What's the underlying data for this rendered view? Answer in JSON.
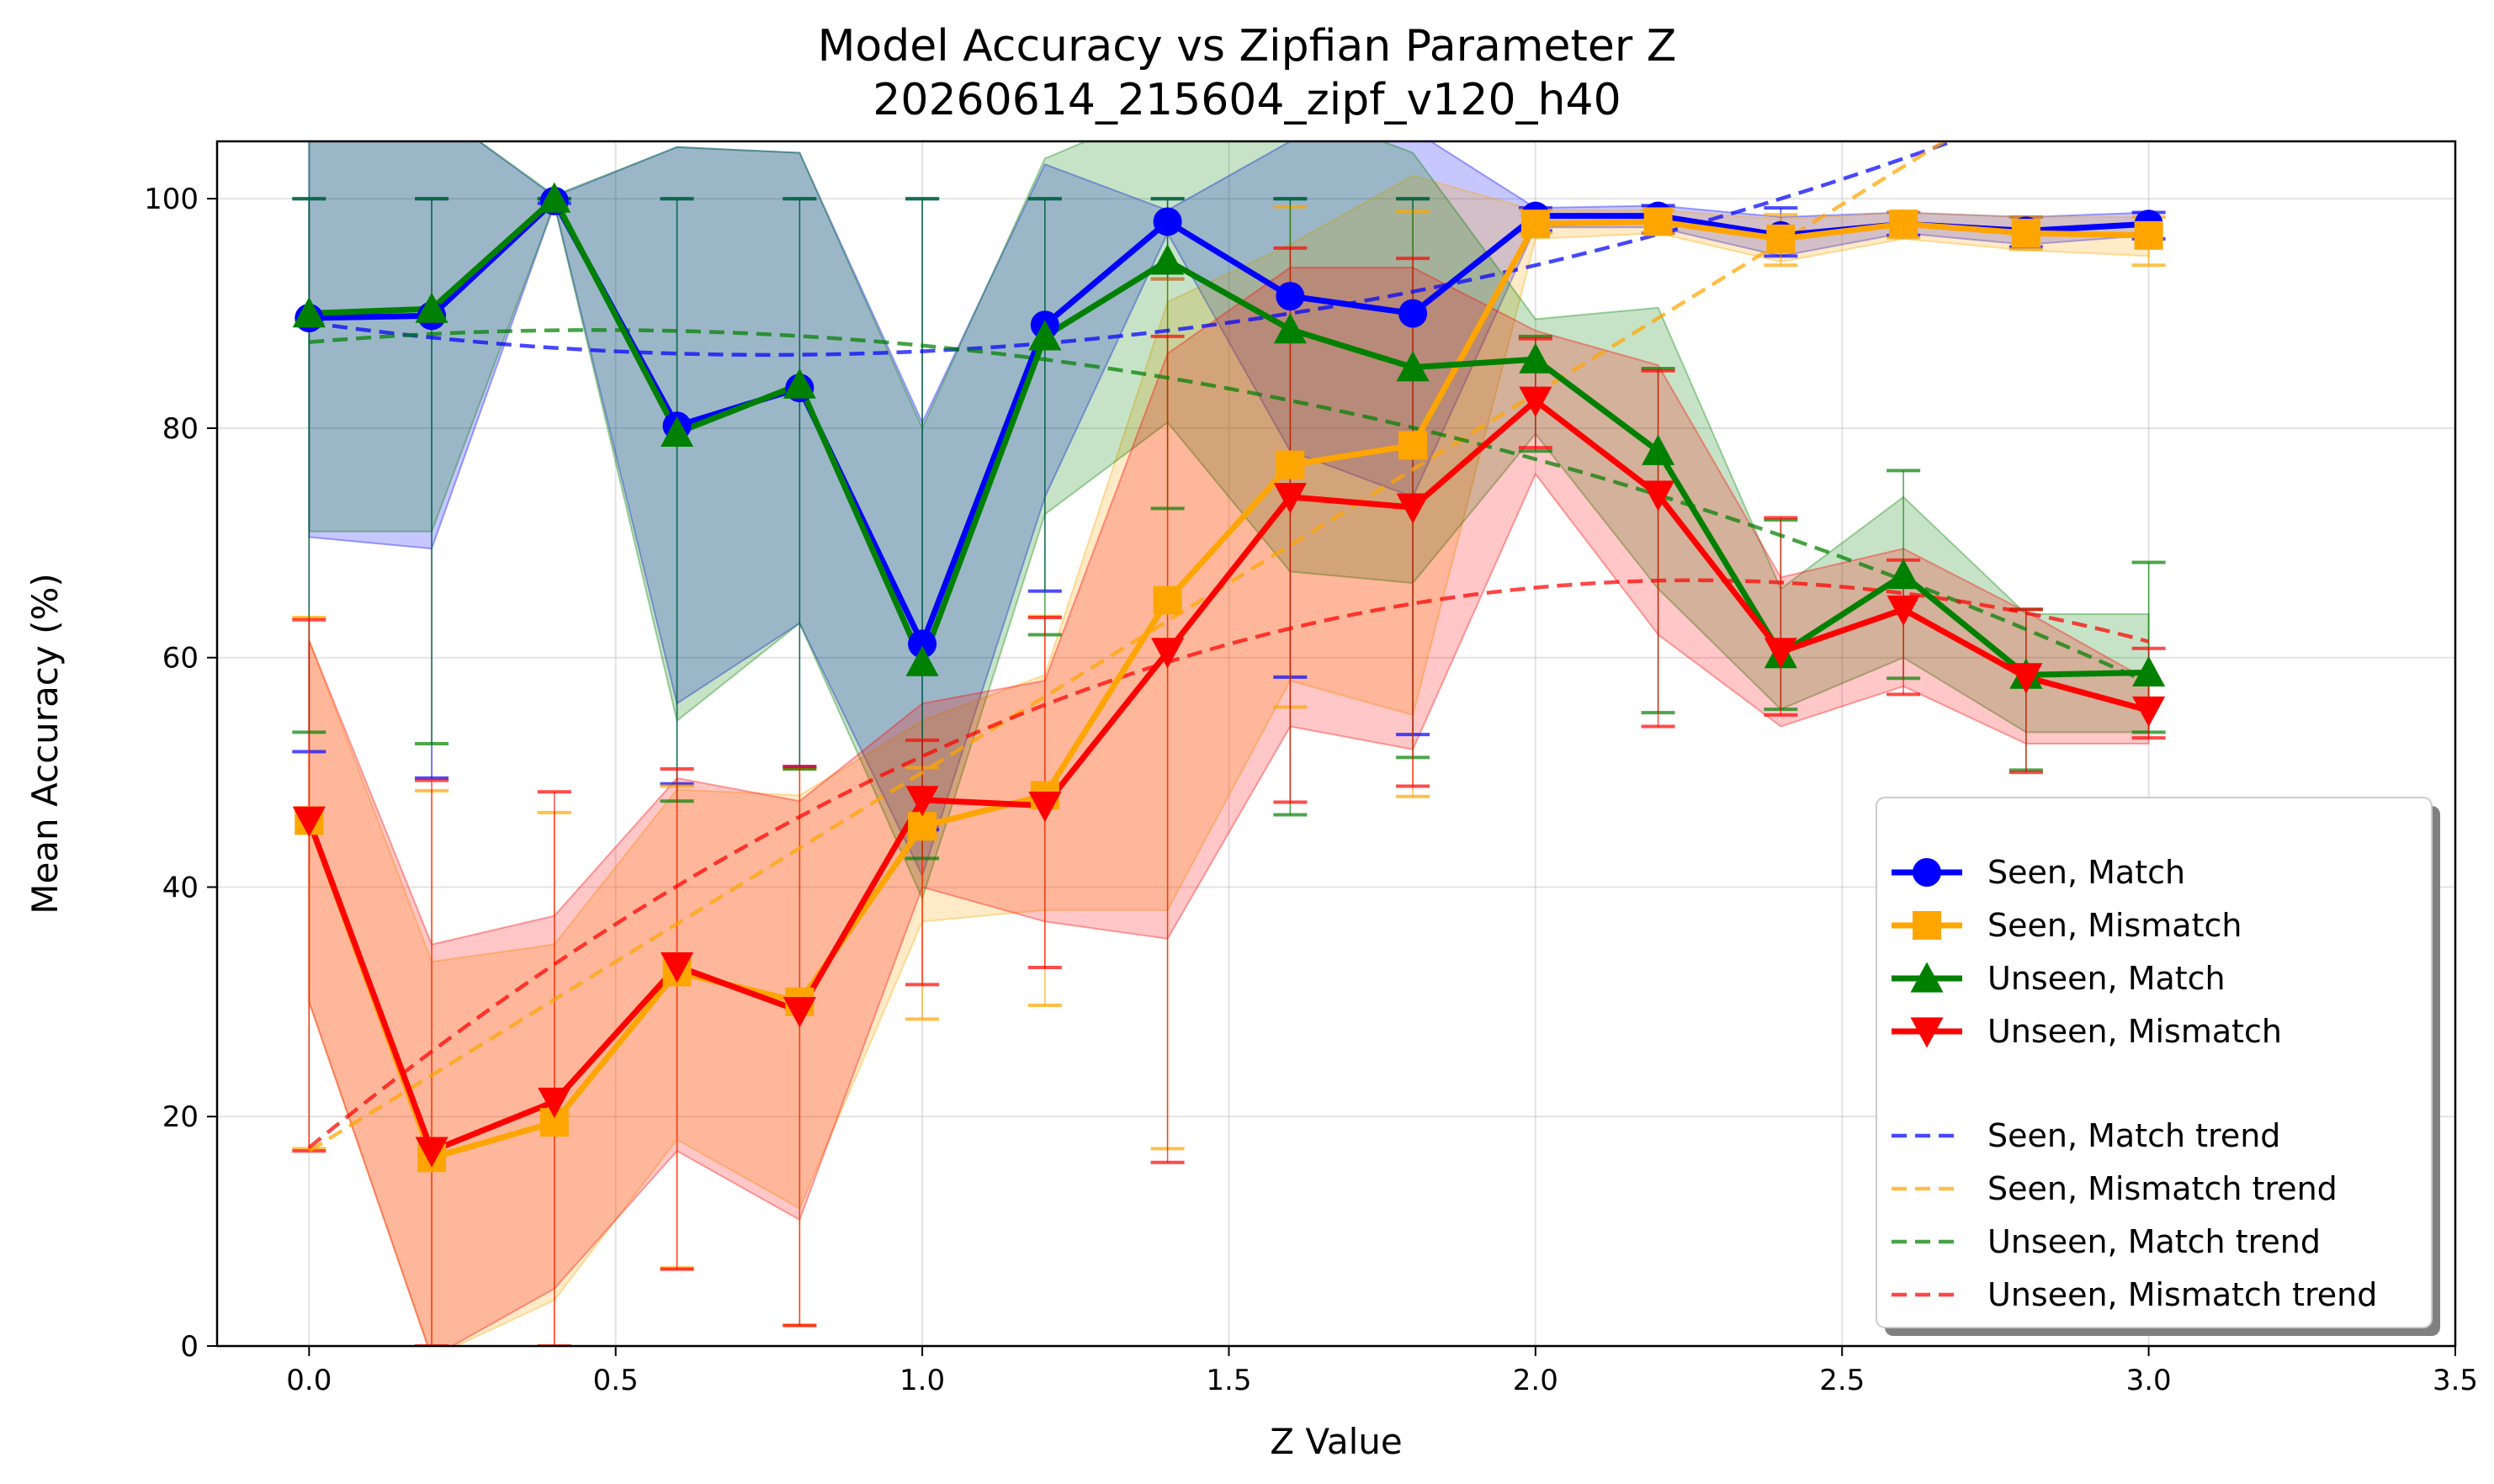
{
  "chart_data": {
    "type": "line",
    "title": "Model Accuracy vs Zipfian Parameter Z",
    "subtitle": "20260614_215604_zipf_v120_h40",
    "xlabel": "Z Value",
    "ylabel": "Mean Accuracy (%)",
    "xlim": [
      -0.15,
      3.5
    ],
    "ylim": [
      0,
      105
    ],
    "xticks": [
      0.0,
      0.5,
      1.0,
      1.5,
      2.0,
      2.5,
      3.0,
      3.5
    ],
    "xtick_labels": [
      "0.0",
      "0.5",
      "1.0",
      "1.5",
      "2.0",
      "2.5",
      "3.0",
      "3.5"
    ],
    "yticks": [
      0,
      20,
      40,
      60,
      80,
      100
    ],
    "ytick_labels": [
      "0",
      "20",
      "40",
      "60",
      "80",
      "100"
    ],
    "grid": true,
    "legend_position": "lower-right",
    "x": [
      0.0,
      0.2,
      0.4,
      0.6,
      0.8,
      1.0,
      1.2,
      1.4,
      1.6,
      1.8,
      2.0,
      2.2,
      2.4,
      2.6,
      2.8,
      3.0
    ],
    "series": [
      {
        "name": "Seen, Match",
        "color": "#0000ff",
        "marker": "circle",
        "values": [
          89.6,
          89.8,
          99.8,
          80.2,
          83.5,
          61.2,
          89.0,
          98.0,
          91.5,
          90.0,
          98.5,
          98.5,
          96.8,
          97.8,
          97.2,
          97.8
        ],
        "band_low": [
          70.5,
          69.5,
          99.5,
          56.0,
          63.0,
          41.0,
          74.0,
          97.0,
          78.0,
          74.0,
          97.5,
          97.5,
          95.0,
          97.0,
          96.0,
          96.8
        ],
        "band_high": [
          108.0,
          108.0,
          100.2,
          104.5,
          104.0,
          80.5,
          103.0,
          99.0,
          105.0,
          106.0,
          99.2,
          99.4,
          98.4,
          98.8,
          98.4,
          98.8
        ],
        "err_low": [
          51.8,
          49.5,
          99.6,
          49.0,
          50.5,
          45.0,
          65.8,
          93.0,
          58.3,
          53.3,
          97.2,
          97.0,
          95.0,
          96.8,
          95.8,
          96.5
        ],
        "err_high": [
          100.0,
          100.0,
          100.0,
          100.0,
          100.0,
          100.0,
          100.0,
          100.0,
          100.0,
          100.0,
          99.2,
          99.4,
          99.2,
          98.8,
          98.4,
          98.8
        ]
      },
      {
        "name": "Seen, Mismatch",
        "color": "#ffa500",
        "marker": "square",
        "values": [
          45.8,
          16.4,
          19.5,
          32.6,
          30.0,
          45.3,
          48.0,
          65.0,
          76.8,
          78.5,
          97.8,
          98.0,
          96.5,
          97.8,
          97.0,
          96.8
        ],
        "band_low": [
          30.0,
          -1.0,
          4.0,
          18.0,
          12.0,
          37.0,
          38.0,
          38.0,
          58.0,
          55.0,
          96.5,
          97.0,
          94.5,
          96.5,
          95.5,
          95.0
        ],
        "band_high": [
          61.5,
          33.5,
          35.0,
          48.5,
          48.0,
          54.5,
          58.5,
          91.0,
          96.0,
          102.0,
          99.0,
          99.0,
          98.2,
          98.8,
          98.4,
          98.4
        ],
        "err_low": [
          17.2,
          0.0,
          0.0,
          6.8,
          1.8,
          28.5,
          29.7,
          17.2,
          55.7,
          47.9,
          97.0,
          97.0,
          94.2,
          96.6,
          95.6,
          94.2
        ],
        "err_high": [
          63.5,
          48.4,
          46.5,
          48.8,
          50.3,
          50.4,
          63.6,
          93.0,
          99.3,
          98.9,
          99.0,
          99.0,
          98.6,
          98.8,
          98.4,
          98.4
        ]
      },
      {
        "name": "Unseen, Match",
        "color": "#008000",
        "marker": "triangle-up",
        "values": [
          90.0,
          90.4,
          100.0,
          79.6,
          83.8,
          59.6,
          88.0,
          94.6,
          88.6,
          85.3,
          86.0,
          78.0,
          60.3,
          67.2,
          58.5,
          58.7
        ],
        "band_low": [
          71.0,
          71.0,
          99.5,
          54.5,
          63.0,
          39.0,
          72.5,
          80.5,
          67.5,
          66.5,
          79.5,
          66.0,
          55.5,
          60.0,
          53.5,
          53.5
        ],
        "band_high": [
          108.0,
          108.0,
          100.3,
          104.5,
          104.0,
          80.0,
          103.5,
          108.0,
          108.0,
          104.0,
          89.5,
          90.5,
          66.0,
          74.0,
          63.8,
          63.8
        ],
        "err_low": [
          53.5,
          52.5,
          100.0,
          47.5,
          50.3,
          42.5,
          62.0,
          73.0,
          46.3,
          51.3,
          78.0,
          55.2,
          55.5,
          58.2,
          50.2,
          53.5
        ],
        "err_high": [
          100.0,
          100.0,
          100.0,
          100.0,
          100.0,
          100.0,
          100.0,
          100.0,
          100.0,
          100.0,
          88.0,
          85.2,
          72.0,
          76.3,
          64.2,
          68.3
        ]
      },
      {
        "name": "Unseen, Mismatch",
        "color": "#ff0000",
        "marker": "triangle-down",
        "values": [
          45.8,
          17.0,
          21.3,
          33.1,
          29.2,
          47.6,
          47.1,
          60.5,
          74.0,
          73.1,
          82.4,
          74.2,
          60.5,
          64.2,
          58.3,
          55.4
        ],
        "band_low": [
          30.0,
          -1.0,
          5.0,
          17.0,
          11.0,
          40.0,
          37.0,
          35.5,
          54.0,
          52.0,
          76.0,
          62.0,
          54.0,
          57.5,
          52.5,
          52.5
        ],
        "band_high": [
          61.5,
          35.0,
          37.5,
          49.5,
          47.5,
          56.0,
          58.0,
          86.5,
          94.0,
          94.0,
          88.5,
          85.5,
          67.0,
          69.5,
          64.0,
          58.0
        ],
        "err_low": [
          17.0,
          0.0,
          0.0,
          6.7,
          1.8,
          31.5,
          33.0,
          16.0,
          47.4,
          48.8,
          78.3,
          54.0,
          55.0,
          56.8,
          50.0,
          53.0
        ],
        "err_high": [
          63.3,
          49.3,
          48.3,
          50.3,
          50.5,
          52.8,
          63.5,
          88.0,
          95.7,
          94.8,
          87.8,
          85.0,
          72.2,
          68.5,
          64.2,
          60.8
        ]
      }
    ],
    "trend_lines": [
      {
        "name": "Seen, Match trend",
        "color": "#0000ff",
        "coeffs": [
          89.2,
          -7.5,
          5.0
        ]
      },
      {
        "name": "Seen, Mismatch trend",
        "color": "#ffa500",
        "coeffs": [
          17.0,
          33.0,
          0.0
        ]
      },
      {
        "name": "Unseen, Match trend",
        "color": "#008000",
        "coeffs": [
          87.5,
          4.5,
          -4.8
        ]
      },
      {
        "name": "Unseen, Mismatch trend",
        "color": "#ff0000",
        "coeffs": [
          17.3,
          43.8,
          -9.7
        ]
      }
    ]
  }
}
